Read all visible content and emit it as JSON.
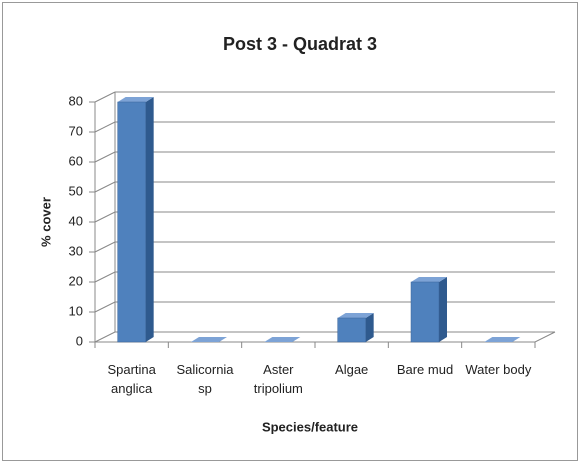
{
  "chart_data": {
    "type": "bar",
    "title": "Post 3 - Quadrat 3",
    "x_label": "Species/feature",
    "y_label": "% cover",
    "categories": [
      "Spartina anglica",
      "Salicornia sp",
      "Aster tripolium",
      "Algae",
      "Bare mud",
      "Water body"
    ],
    "values": [
      80,
      0,
      0,
      8,
      20,
      0
    ],
    "color": "#4f81bd",
    "ylim": [
      0,
      80
    ],
    "yticks": [
      0,
      10,
      20,
      30,
      40,
      50,
      60,
      70,
      80
    ],
    "grid": true
  }
}
